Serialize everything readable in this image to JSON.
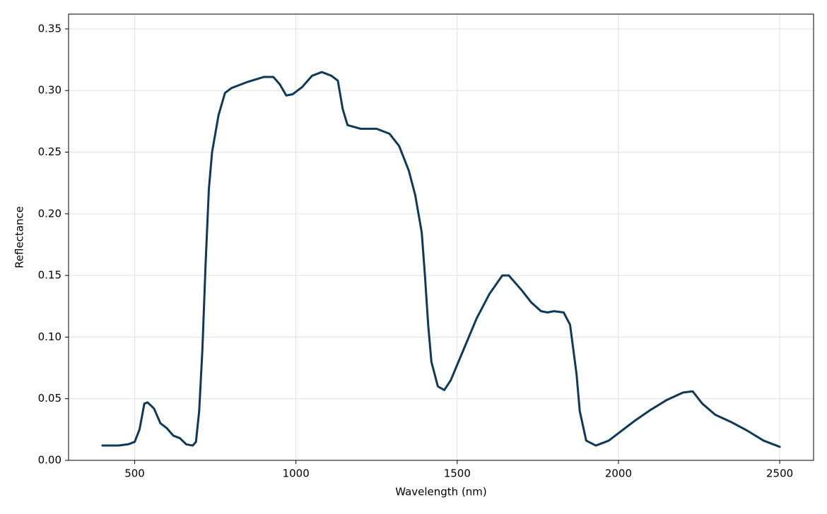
{
  "chart_data": {
    "type": "line",
    "x_label": "Wavelength (nm)",
    "y_label": "Reflectance",
    "xlim": [
      295,
      2605
    ],
    "ylim": [
      0,
      0.362
    ],
    "xticks": [
      500,
      1000,
      1500,
      2000,
      2500
    ],
    "yticks": [
      {
        "value": 0,
        "label": "0.00"
      },
      {
        "value": 0.05,
        "label": "0.05"
      },
      {
        "value": 0.1,
        "label": "0.10"
      },
      {
        "value": 0.15,
        "label": "0.15"
      },
      {
        "value": 0.2,
        "label": "0.20"
      },
      {
        "value": 0.25,
        "label": "0.25"
      },
      {
        "value": 0.3,
        "label": "0.30"
      },
      {
        "value": 0.35,
        "label": "0.35"
      }
    ],
    "grid": true,
    "color": "#0e3a57",
    "x": [
      400,
      450,
      480,
      500,
      515,
      530,
      540,
      560,
      580,
      600,
      620,
      640,
      660,
      680,
      690,
      700,
      710,
      720,
      730,
      740,
      760,
      780,
      800,
      850,
      900,
      930,
      950,
      970,
      990,
      1020,
      1050,
      1080,
      1110,
      1130,
      1145,
      1160,
      1200,
      1250,
      1290,
      1320,
      1350,
      1370,
      1380,
      1390,
      1400,
      1410,
      1420,
      1440,
      1460,
      1480,
      1520,
      1560,
      1600,
      1640,
      1660,
      1700,
      1730,
      1760,
      1780,
      1800,
      1830,
      1850,
      1870,
      1880,
      1900,
      1930,
      1970,
      2000,
      2050,
      2100,
      2150,
      2200,
      2230,
      2260,
      2300,
      2350,
      2400,
      2450,
      2500
    ],
    "values": [
      0.012,
      0.012,
      0.013,
      0.015,
      0.025,
      0.046,
      0.047,
      0.042,
      0.03,
      0.026,
      0.02,
      0.018,
      0.013,
      0.012,
      0.015,
      0.04,
      0.09,
      0.16,
      0.22,
      0.25,
      0.28,
      0.298,
      0.302,
      0.307,
      0.311,
      0.311,
      0.305,
      0.296,
      0.297,
      0.303,
      0.312,
      0.315,
      0.312,
      0.308,
      0.285,
      0.272,
      0.269,
      0.269,
      0.265,
      0.255,
      0.235,
      0.215,
      0.2,
      0.185,
      0.15,
      0.11,
      0.08,
      0.06,
      0.057,
      0.065,
      0.09,
      0.115,
      0.135,
      0.15,
      0.15,
      0.138,
      0.128,
      0.121,
      0.12,
      0.121,
      0.12,
      0.11,
      0.07,
      0.04,
      0.016,
      0.012,
      0.016,
      0.022,
      0.032,
      0.041,
      0.049,
      0.055,
      0.056,
      0.046,
      0.037,
      0.031,
      0.024,
      0.016,
      0.011
    ]
  }
}
